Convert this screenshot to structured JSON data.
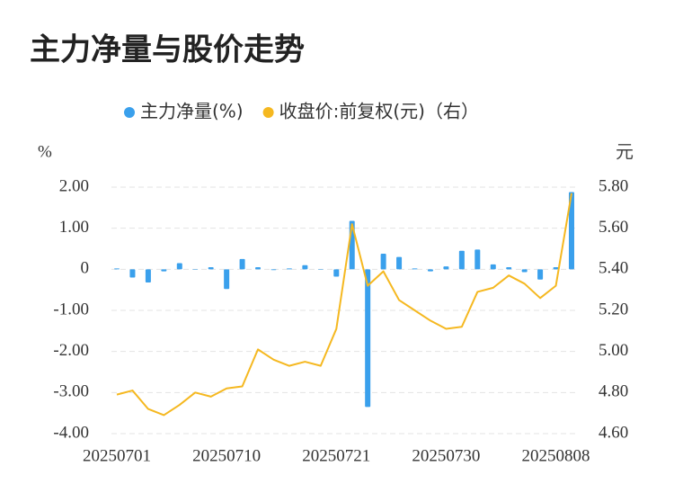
{
  "chart_data": {
    "type": "combo",
    "title": "主力净量与股价走势",
    "y_unit": "%",
    "y2_unit": "元",
    "categories": [
      "20250701",
      null,
      null,
      null,
      null,
      null,
      null,
      "20250710",
      null,
      null,
      null,
      null,
      null,
      null,
      "20250721",
      null,
      null,
      null,
      null,
      null,
      null,
      "20250730",
      null,
      null,
      null,
      null,
      null,
      null,
      "20250808",
      null
    ],
    "series": [
      {
        "name": "主力净量(%)",
        "type": "bar",
        "color": "#3aa0ec",
        "values": [
          0.02,
          -0.2,
          -0.32,
          -0.05,
          0.15,
          -0.01,
          0.05,
          -0.48,
          0.25,
          0.05,
          -0.02,
          0.02,
          0.1,
          -0.01,
          -0.18,
          1.18,
          -3.35,
          0.38,
          0.3,
          0.02,
          -0.05,
          0.07,
          0.45,
          0.48,
          0.12,
          0.05,
          -0.07,
          -0.25,
          0.05,
          1.88
        ]
      },
      {
        "name": "收盘价:前复权(元)（右）",
        "type": "line",
        "axis": "y2",
        "color": "#f5b820",
        "values": [
          4.79,
          4.81,
          4.72,
          4.69,
          4.74,
          4.8,
          4.78,
          4.82,
          4.83,
          5.01,
          4.96,
          4.93,
          4.95,
          4.93,
          5.11,
          5.62,
          5.32,
          5.39,
          5.25,
          5.2,
          5.15,
          5.11,
          5.12,
          5.29,
          5.31,
          5.37,
          5.33,
          5.26,
          5.32,
          5.77
        ]
      }
    ],
    "ylim": [
      -4,
      2
    ],
    "yticks": [
      {
        "value": -4,
        "label": "-4.00"
      },
      {
        "value": -3,
        "label": "-3.00"
      },
      {
        "value": -2,
        "label": "-2.00"
      },
      {
        "value": -1,
        "label": "-1.00"
      },
      0,
      {
        "value": 1,
        "label": "1.00"
      },
      {
        "value": 2,
        "label": "2.00"
      }
    ],
    "y2lim": [
      4.6,
      5.8
    ],
    "y2ticks": [
      {
        "value": 4.6,
        "label": "4.60"
      },
      {
        "value": 4.8,
        "label": "4.80"
      },
      {
        "value": 5.0,
        "label": "5.00"
      },
      {
        "value": 5.2,
        "label": "5.20"
      },
      {
        "value": 5.4,
        "label": "5.40"
      },
      {
        "value": 5.6,
        "label": "5.60"
      },
      {
        "value": 5.8,
        "label": "5.80"
      }
    ],
    "grid": true
  }
}
